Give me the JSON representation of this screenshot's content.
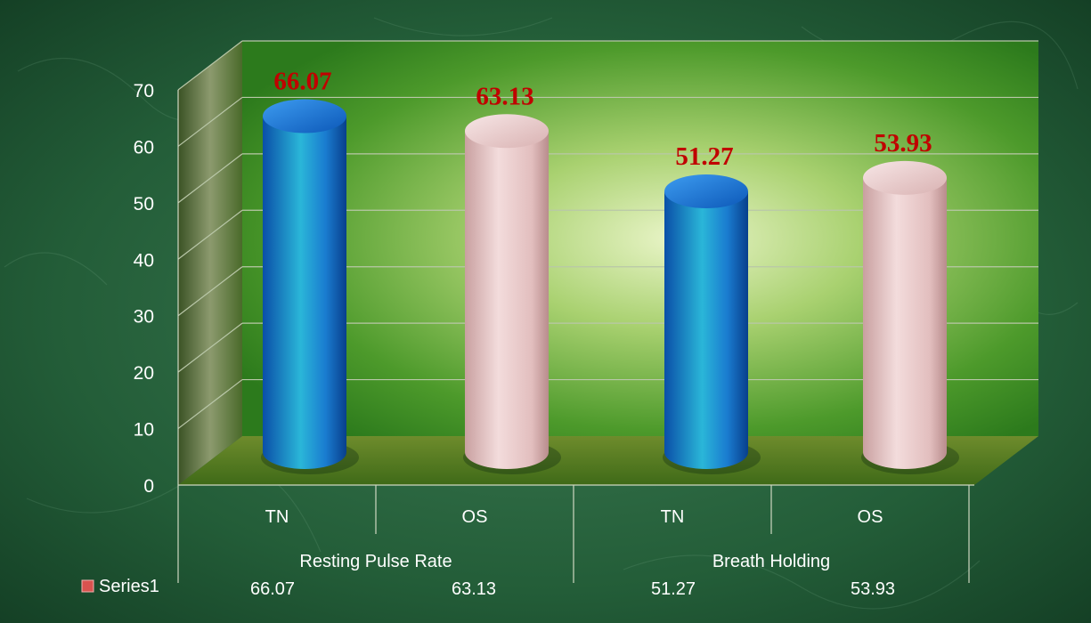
{
  "chart_data": {
    "type": "bar",
    "style": "3d-cylinder",
    "groups": [
      {
        "label": "Resting Pulse Rate",
        "categories": [
          "TN",
          "OS"
        ]
      },
      {
        "label": "Breath Holding",
        "categories": [
          "TN",
          "OS"
        ]
      }
    ],
    "categories": [
      "TN",
      "OS",
      "TN",
      "OS"
    ],
    "series": [
      {
        "name": "Series1",
        "values": [
          66.07,
          63.13,
          51.27,
          53.93
        ]
      }
    ],
    "data_labels": [
      "66.07",
      "63.13",
      "51.27",
      "53.93"
    ],
    "ylim": [
      0,
      70
    ],
    "yticks": [
      0,
      10,
      20,
      30,
      40,
      50,
      60,
      70
    ],
    "grid": true,
    "data_table": true,
    "colors": {
      "tn": "#1f78d2",
      "os": "#e8c4c4",
      "label": "#c00000",
      "back_wall": "#3f9a2a",
      "background": "#1f5a34"
    }
  }
}
